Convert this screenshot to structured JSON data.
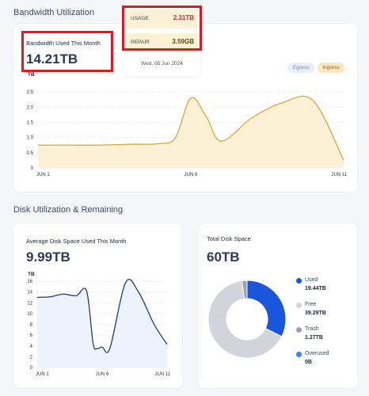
{
  "bandwidth": {
    "section_title": "Bandwidth Utilization",
    "used_label": "Bandwidth Used This Month",
    "used_value": "14.21TB",
    "tooltip": {
      "usage_label": "USAGE",
      "usage_value": "2.31TB",
      "repair_label": "REPAIR",
      "repair_value": "3.59GB",
      "date": "Wed, 05 Jun 2024"
    },
    "legend": {
      "egress": "Egress",
      "ingress": "Ingress"
    }
  },
  "disk": {
    "section_title": "Disk Utilization & Remaining",
    "avg_label": "Average Disk Space Used This Month",
    "avg_value": "9.99TB",
    "total_label": "Total Disk Space",
    "total_value": "60TB",
    "legend": [
      {
        "label": "Used",
        "value": "19.44TB",
        "color": "#1a56db"
      },
      {
        "label": "Free",
        "value": "39.29TB",
        "color": "#d1d5db"
      },
      {
        "label": "Trash",
        "value": "1.27TB",
        "color": "#94a3b8"
      },
      {
        "label": "Overused",
        "value": "0B",
        "color": "#3b82f6"
      }
    ]
  },
  "colors": {
    "ingress_fill": "#fdf1d5",
    "ingress_line": "#d6a83a",
    "disk_line": "#1e3a8a",
    "disk_fill": "#eef2fb",
    "highlight": "#e8141e"
  },
  "chart_data": [
    {
      "type": "area",
      "series": [
        {
          "name": "Ingress",
          "values": [
            0.75,
            0.75,
            0.75,
            0.78,
            0.8,
            1.0,
            2.3,
            1.7,
            0.88,
            1.65,
            2.15,
            2.22,
            0.25
          ]
        }
      ],
      "x": [
        1,
        2,
        3,
        4,
        5,
        5.5,
        6,
        6.5,
        7,
        8,
        9,
        10,
        11
      ],
      "xticks": [
        "JUN 1",
        "JUN 6",
        "JUN 11"
      ],
      "yticks": [
        "0",
        "0.5",
        "1.0",
        "1.5",
        "2.0",
        "2.5"
      ],
      "ylabel": "TB",
      "ylim": [
        0,
        3
      ],
      "grid": true
    },
    {
      "type": "area",
      "series": [
        {
          "values": [
            13.0,
            13.1,
            13.6,
            13.3,
            14.2,
            4.5,
            3.5,
            3.8,
            3.6,
            15.7,
            14.0,
            8.0,
            4.3
          ]
        }
      ],
      "x": [
        1,
        2,
        3,
        4,
        4.8,
        5.3,
        5.6,
        6,
        6.6,
        7.8,
        8.8,
        10,
        11
      ],
      "xticks": [
        "JUN 1",
        "JUN 6",
        "JUN 11"
      ],
      "yticks": [
        "0",
        "2",
        "4",
        "6",
        "8",
        "10",
        "12",
        "14",
        "16"
      ],
      "ylabel": "TB",
      "ylim": [
        0,
        16
      ],
      "grid": true
    },
    {
      "type": "pie",
      "categories": [
        "Used",
        "Free",
        "Trash",
        "Overused"
      ],
      "values": [
        19.44,
        39.29,
        1.27,
        0
      ]
    }
  ]
}
